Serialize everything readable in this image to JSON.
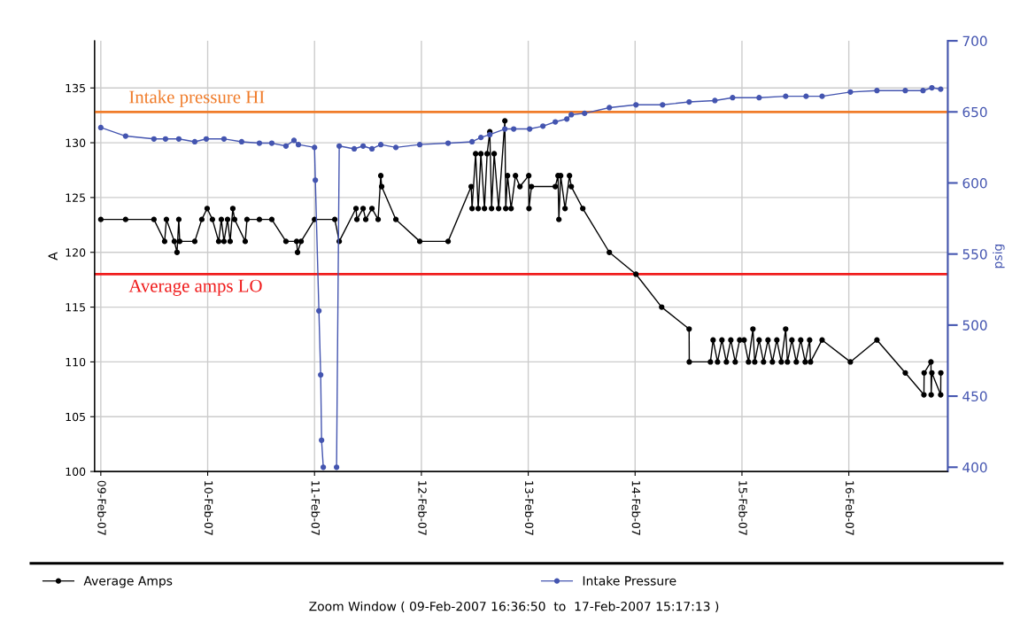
{
  "chart_data": {
    "type": "line",
    "ylabel": "A",
    "y2label": "psig",
    "marker": "circle",
    "line_style": "solid",
    "grid": true,
    "legend": "bottom",
    "annotations": [
      "Zoom Window ( 09-Feb-2007 16:36:50  to  17-Feb-2007 15:17:13 )"
    ],
    "xlim": [
      "2007-02-08T22:36",
      "2007-02-16T22:14"
    ],
    "xticks": [
      {
        "value": "2007-02-09",
        "label": "09-Feb-07"
      },
      {
        "value": "2007-02-10",
        "label": "10-Feb-07"
      },
      {
        "value": "2007-02-11",
        "label": "11-Feb-07"
      },
      {
        "value": "2007-02-12",
        "label": "12-Feb-07"
      },
      {
        "value": "2007-02-13",
        "label": "13-Feb-07"
      },
      {
        "value": "2007-02-14",
        "label": "14-Feb-07"
      },
      {
        "value": "2007-02-15",
        "label": "15-Feb-07"
      },
      {
        "value": "2007-02-16",
        "label": "16-Feb-07"
      }
    ],
    "ylim": [
      100,
      139.3
    ],
    "yticks": [
      100,
      105,
      110,
      115,
      120,
      125,
      130,
      135
    ],
    "y2lim": [
      397,
      700
    ],
    "y2ticks": [
      400,
      450,
      500,
      550,
      600,
      650,
      700
    ],
    "ref_lines": [
      {
        "axis": "y2",
        "value": 650,
        "label": "Intake pressure HI",
        "color": "#f07c2a"
      },
      {
        "axis": "y",
        "value": 118,
        "label": "Average amps LO",
        "color": "#f01c1c"
      }
    ],
    "series": [
      {
        "name": "Average Amps",
        "color": "#000000",
        "x": [
          "2007-02-09T00:00",
          "2007-02-09T05:34",
          "2007-02-09T11:56",
          "2007-02-09T14:20",
          "2007-02-09T14:44",
          "2007-02-09T16:31",
          "2007-02-09T17:07",
          "2007-02-09T17:31",
          "2007-02-09T17:43",
          "2007-02-09T21:06",
          "2007-02-09T22:41",
          "2007-02-09T23:53",
          "2007-02-10T01:04",
          "2007-02-10T02:28",
          "2007-02-10T03:04",
          "2007-02-10T03:40",
          "2007-02-10T04:28",
          "2007-02-10T05:03",
          "2007-02-10T05:39",
          "2007-02-10T06:03",
          "2007-02-10T08:26",
          "2007-02-10T08:50",
          "2007-02-10T11:37",
          "2007-02-10T14:24",
          "2007-02-10T17:35",
          "2007-02-10T19:59",
          "2007-02-10T20:11",
          "2007-02-10T20:59",
          "2007-02-11T00:00",
          "2007-02-11T04:33",
          "2007-02-11T05:33",
          "2007-02-11T09:19",
          "2007-02-11T09:31",
          "2007-02-11T10:55",
          "2007-02-11T11:30",
          "2007-02-11T12:54",
          "2007-02-11T14:17",
          "2007-02-11T14:53",
          "2007-02-11T15:05",
          "2007-02-11T18:16",
          "2007-02-11T23:38",
          "2007-02-12T06:00",
          "2007-02-12T11:11",
          "2007-02-12T11:23",
          "2007-02-12T12:11",
          "2007-02-12T12:46",
          "2007-02-12T13:22",
          "2007-02-12T14:10",
          "2007-02-12T14:46",
          "2007-02-12T15:22",
          "2007-02-12T15:46",
          "2007-02-12T16:21",
          "2007-02-12T17:21",
          "2007-02-12T18:45",
          "2007-02-12T18:57",
          "2007-02-12T19:21",
          "2007-02-12T20:09",
          "2007-02-12T21:08",
          "2007-02-12T22:08",
          "2007-02-13T00:07",
          "2007-02-13T00:10",
          "2007-02-13T00:43",
          "2007-02-13T06:05",
          "2007-02-13T06:41",
          "2007-02-13T06:53",
          "2007-02-13T07:17",
          "2007-02-13T08:16",
          "2007-02-13T09:16",
          "2007-02-13T09:40",
          "2007-02-13T12:15",
          "2007-02-13T18:13",
          "2007-02-14T00:12",
          "2007-02-14T05:58",
          "2007-02-14T12:08",
          "2007-02-14T12:10",
          "2007-02-14T16:55",
          "2007-02-14T17:31",
          "2007-02-14T18:31",
          "2007-02-14T19:30",
          "2007-02-14T20:30",
          "2007-02-14T21:30",
          "2007-02-14T22:29",
          "2007-02-14T23:29",
          "2007-02-15T00:29",
          "2007-02-15T01:28",
          "2007-02-15T02:28",
          "2007-02-15T02:52",
          "2007-02-15T03:51",
          "2007-02-15T04:51",
          "2007-02-15T05:51",
          "2007-02-15T06:50",
          "2007-02-15T07:50",
          "2007-02-15T08:50",
          "2007-02-15T09:49",
          "2007-02-15T10:13",
          "2007-02-15T11:13",
          "2007-02-15T12:12",
          "2007-02-15T13:12",
          "2007-02-15T14:12",
          "2007-02-15T15:12",
          "2007-02-15T15:24",
          "2007-02-15T18:00",
          "2007-02-16T00:21",
          "2007-02-16T06:19",
          "2007-02-16T12:41",
          "2007-02-16T16:52",
          "2007-02-16T16:55",
          "2007-02-16T18:27",
          "2007-02-16T18:30",
          "2007-02-16T18:39",
          "2007-02-16T20:38",
          "2007-02-16T20:40"
        ],
        "values": [
          123,
          123,
          123,
          121,
          123,
          121,
          120,
          123,
          121,
          121,
          123,
          124,
          123,
          121,
          123,
          121,
          123,
          121,
          124,
          123,
          121,
          123,
          123,
          123,
          121,
          121,
          120,
          121,
          123,
          123,
          121,
          124,
          123,
          124,
          123,
          124,
          123,
          127,
          126,
          123,
          121,
          121,
          126,
          124,
          129,
          124,
          129,
          124,
          129,
          131,
          124,
          129,
          124,
          132,
          124,
          127,
          124,
          127,
          126,
          127,
          124,
          126,
          126,
          127,
          123,
          127,
          124,
          127,
          126,
          124,
          120,
          118,
          115,
          113,
          110,
          110,
          112,
          110,
          112,
          110,
          112,
          110,
          112,
          112,
          110,
          113,
          110,
          112,
          110,
          112,
          110,
          112,
          110,
          113,
          110,
          112,
          110,
          112,
          110,
          112,
          110,
          112,
          110,
          112,
          109,
          107,
          109,
          110,
          107,
          109,
          107,
          109
        ]
      },
      {
        "name": "Intake Pressure",
        "color": "#4455b0",
        "axis": "y2",
        "x": [
          "2007-02-09T00:00",
          "2007-02-09T05:34",
          "2007-02-09T11:56",
          "2007-02-09T14:32",
          "2007-02-09T17:31",
          "2007-02-09T21:06",
          "2007-02-09T23:41",
          "2007-02-10T03:40",
          "2007-02-10T07:38",
          "2007-02-10T11:37",
          "2007-02-10T14:24",
          "2007-02-10T17:35",
          "2007-02-10T19:23",
          "2007-02-10T20:23",
          "2007-02-11T00:00",
          "2007-02-11T00:11",
          "2007-02-11T00:59",
          "2007-02-11T01:23",
          "2007-02-11T01:35",
          "2007-02-11T01:58",
          "2007-02-11T03:00",
          "2007-02-11T04:57",
          "2007-02-11T05:33",
          "2007-02-11T08:55",
          "2007-02-11T10:55",
          "2007-02-11T12:54",
          "2007-02-11T14:53",
          "2007-02-11T18:16",
          "2007-02-11T23:38",
          "2007-02-12T06:00",
          "2007-02-12T11:23",
          "2007-02-12T13:22",
          "2007-02-12T15:22",
          "2007-02-12T18:45",
          "2007-02-12T20:44",
          "2007-02-13T00:19",
          "2007-02-13T03:18",
          "2007-02-13T06:05",
          "2007-02-13T08:40",
          "2007-02-13T09:40",
          "2007-02-13T12:39",
          "2007-02-13T18:13",
          "2007-02-14T00:12",
          "2007-02-14T06:10",
          "2007-02-14T12:08",
          "2007-02-14T17:55",
          "2007-02-14T21:54",
          "2007-02-15T03:51",
          "2007-02-15T09:49",
          "2007-02-15T14:24",
          "2007-02-15T18:00",
          "2007-02-16T00:21",
          "2007-02-16T06:19",
          "2007-02-16T12:41",
          "2007-02-16T16:40",
          "2007-02-16T18:39",
          "2007-02-16T20:38"
        ],
        "values": [
          639,
          633,
          631,
          631,
          631,
          629,
          631,
          631,
          629,
          628,
          628,
          626,
          630,
          627,
          625,
          602,
          510,
          465,
          419,
          400,
          null,
          400,
          626,
          624,
          626,
          624,
          627,
          625,
          627,
          628,
          629,
          632,
          634,
          638,
          638,
          638,
          640,
          643,
          645,
          648,
          649,
          653,
          655,
          655,
          657,
          658,
          660,
          660,
          661,
          661,
          661,
          664,
          665,
          665,
          665,
          667,
          666
        ]
      }
    ]
  }
}
